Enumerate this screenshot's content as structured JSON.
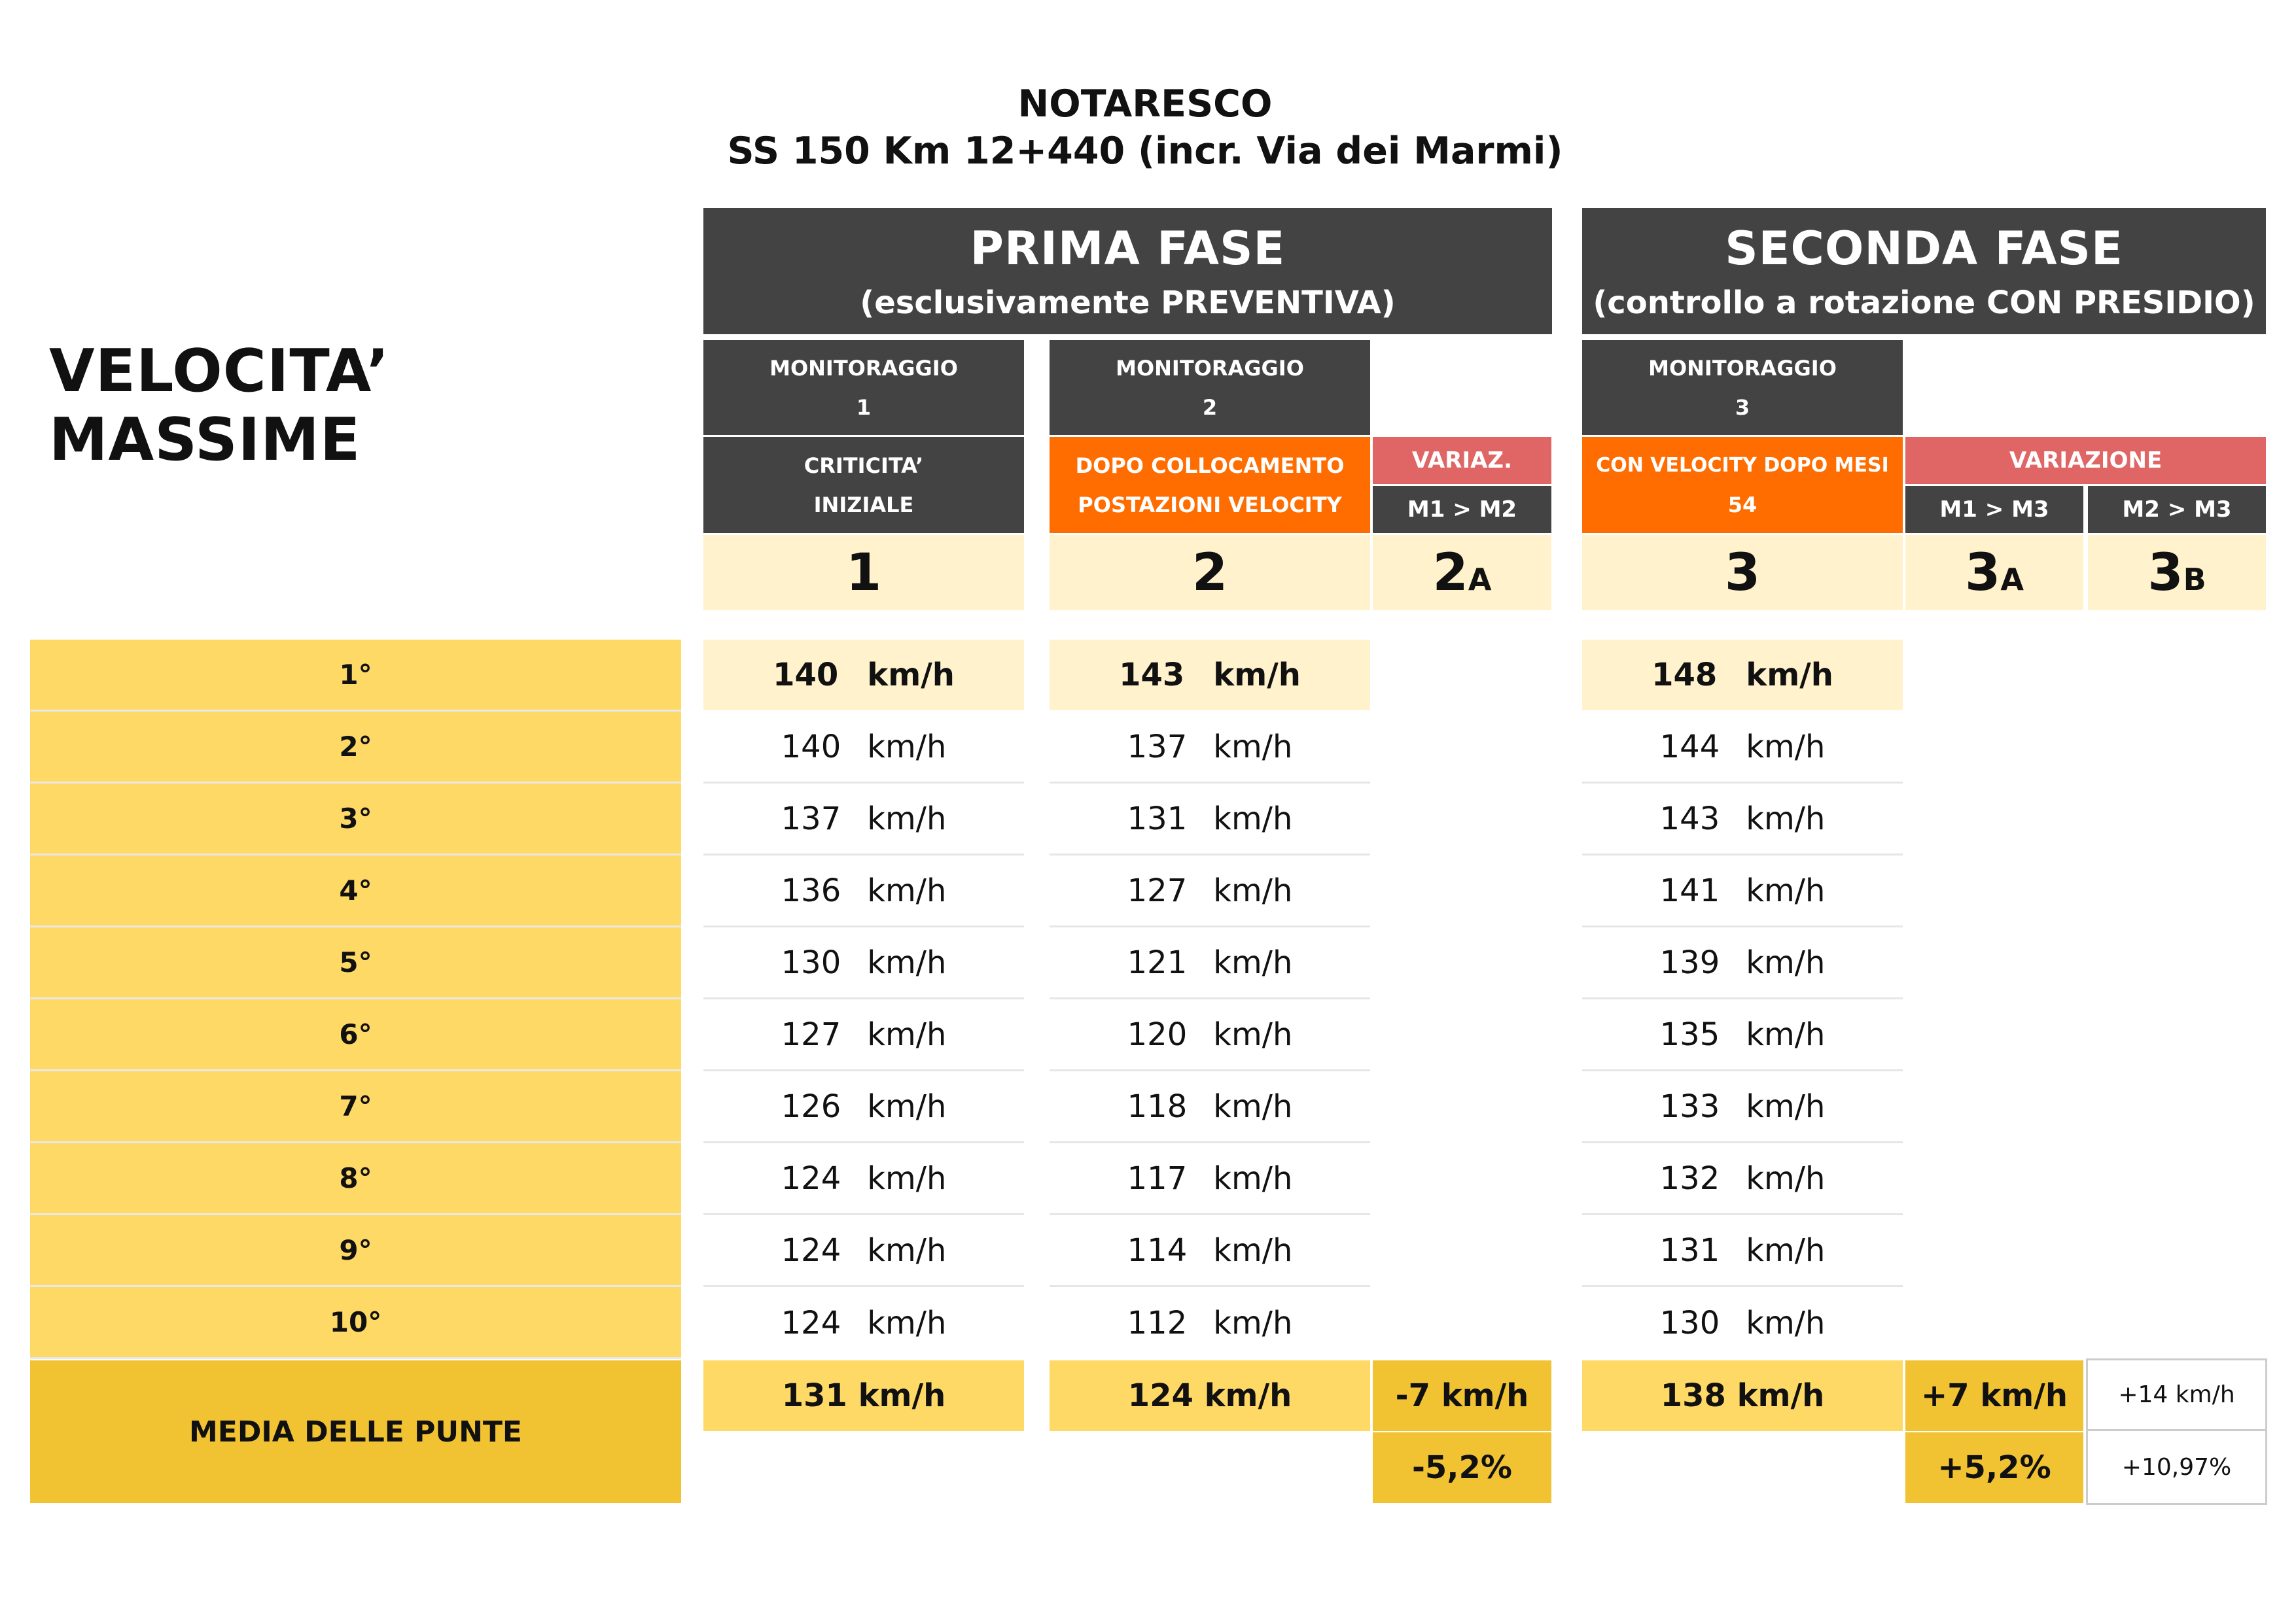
{
  "title": {
    "line1": "NOTARESCO",
    "line2": "SS 150 Km 12+440 (incr. Via dei Marmi)"
  },
  "side_title": "VELOCITA’ MASSIME",
  "phases": [
    {
      "title": "PRIMA FASE",
      "subtitle": "(esclusivamente PREVENTIVA)"
    },
    {
      "title": "SECONDA FASE",
      "subtitle": "(controllo a rotazione CON PRESIDIO)"
    }
  ],
  "monitoraggi": [
    {
      "label": "MONITORAGGIO",
      "num": "1",
      "desc1": "CRITICITA’",
      "desc2": "INIZIALE",
      "col": "1"
    },
    {
      "label": "MONITORAGGIO",
      "num": "2",
      "desc1": "DOPO COLLOCAMENTO",
      "desc2": "POSTAZIONI VELOCITY",
      "col": "2"
    },
    {
      "label": "MONITORAGGIO",
      "num": "3",
      "desc1": "CON VELOCITY DOPO MESI",
      "desc2": "54",
      "col": "3"
    }
  ],
  "variazioni": {
    "v2": {
      "label": "VARIAZ.",
      "sub": "M1 > M2",
      "col": "2",
      "col_sub": "A"
    },
    "v3": {
      "label": "VARIAZIONE",
      "subA": "M1 > M3",
      "subB": "M2 > M3",
      "colA": "3",
      "colA_sub": "A",
      "colB": "3",
      "colB_sub": "B"
    }
  },
  "unit": "km/h",
  "ranks": [
    "1°",
    "2°",
    "3°",
    "4°",
    "5°",
    "6°",
    "7°",
    "8°",
    "9°",
    "10°"
  ],
  "m1": [
    "140",
    "140",
    "137",
    "136",
    "130",
    "127",
    "126",
    "124",
    "124",
    "124"
  ],
  "m2": [
    "143",
    "137",
    "131",
    "127",
    "121",
    "120",
    "118",
    "117",
    "114",
    "112"
  ],
  "m3": [
    "148",
    "144",
    "143",
    "141",
    "139",
    "135",
    "133",
    "132",
    "131",
    "130"
  ],
  "media": {
    "label": "MEDIA DELLE PUNTE",
    "m1": "131 km/h",
    "m2": "124 km/h",
    "v2_abs": "-7 km/h",
    "v2_pct": "-5,2%",
    "m3": "138 km/h",
    "v3a_abs": "+7 km/h",
    "v3a_pct": "+5,2%",
    "v3b_abs": "+14 km/h",
    "v3b_pct": "+10,97%"
  },
  "colors": {
    "dark_header": "#434343",
    "orange": "#ff6d01",
    "red": "#e06666",
    "cream": "#fff2cc",
    "yellow": "#ffd966",
    "gold": "#f1c232"
  }
}
